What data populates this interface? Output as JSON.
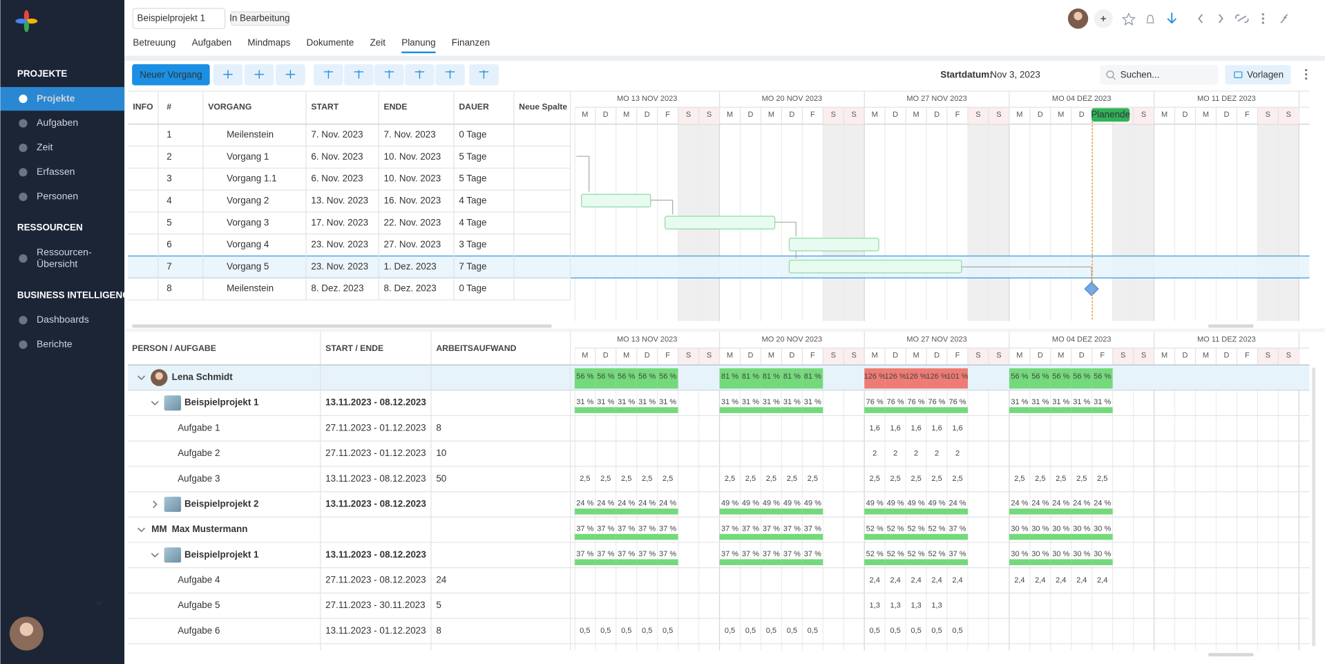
{
  "sidebar": {
    "sections": [
      {
        "title": "PROJEKTE",
        "items": [
          [
            "Projekte"
          ],
          [
            "Aufgaben"
          ],
          [
            "Zeit"
          ],
          [
            "Erfassen"
          ],
          [
            "Personen"
          ]
        ]
      },
      {
        "title": "RESSOURCEN",
        "items": [
          [
            "Ressourcen-",
            "Übersicht"
          ]
        ]
      },
      {
        "title": "BUSINESS INTELLIGENCE",
        "items": [
          [
            "Dashboards"
          ],
          [
            "Berichte"
          ]
        ]
      }
    ],
    "active_item": "Projekte"
  },
  "header": {
    "title": "Beispielprojekt 1",
    "status": "In Bearbeitung",
    "tabs": [
      "Betreuung",
      "Aufgaben",
      "Mindmaps",
      "Dokumente",
      "Zeit",
      "Planung",
      "Finanzen"
    ],
    "active_tab": "Planung"
  },
  "toolbar": {
    "new_button": "Neuer Vorgang",
    "start_label": "Startdatum:",
    "start_date": "Nov 3, 2023",
    "search_placeholder": "Suchen...",
    "templates": "Vorlagen"
  },
  "timeline": {
    "weeks": [
      "MO 13 NOV 2023",
      "MO 20 NOV 2023",
      "MO 27 NOV 2023",
      "MO 04 DEZ 2023",
      "MO 11 DEZ 2023"
    ],
    "days": [
      "M",
      "D",
      "M",
      "D",
      "F",
      "S",
      "S"
    ],
    "plan_end": "Planende"
  },
  "gantt": {
    "columns": [
      "INFO",
      "#",
      "VORGANG",
      "START",
      "ENDE",
      "DAUER",
      "Neue Spalte"
    ],
    "rows": [
      [
        1,
        "Meilenstein",
        "7. Nov. 2023",
        "7. Nov. 2023",
        "0 Tage"
      ],
      [
        2,
        "Vorgang 1",
        "6. Nov. 2023",
        "10. Nov. 2023",
        "5 Tage"
      ],
      [
        3,
        "Vorgang 1.1",
        "6. Nov. 2023",
        "10. Nov. 2023",
        "5 Tage"
      ],
      [
        4,
        "Vorgang 2",
        "13. Nov. 2023",
        "16. Nov. 2023",
        "4 Tage"
      ],
      [
        5,
        "Vorgang 3",
        "17. Nov. 2023",
        "22. Nov. 2023",
        "4 Tage"
      ],
      [
        6,
        "Vorgang 4",
        "23. Nov. 2023",
        "27. Nov. 2023",
        "3 Tage"
      ],
      [
        7,
        "Vorgang 5",
        "23. Nov. 2023",
        "1. Dez. 2023",
        "7 Tage"
      ],
      [
        8,
        "Meilenstein",
        "8. Dez. 2023",
        "8. Dez. 2023",
        "0 Tage"
      ]
    ]
  },
  "resources": {
    "columns": [
      "PERSON / AUFGABE",
      "START / ENDE",
      "ARBEITSAUFWAND"
    ],
    "rows": [
      {
        "name": "Lena Schmidt",
        "weeks": [
          [
            "56 %",
            "56 %",
            "56 %",
            "56 %",
            "56 %"
          ],
          [
            "81 %",
            "81 %",
            "81 %",
            "81 %",
            "81 %"
          ],
          [
            "126 %",
            "126 %",
            "126 %",
            "126 %",
            "101 %"
          ],
          [
            "56 %",
            "56 %",
            "56 %",
            "56 %",
            "56 %"
          ]
        ]
      },
      {
        "name": "Beispielprojekt 1",
        "period": "13.11.2023 - 08.12.2023",
        "weeks": [
          [
            "31 %",
            "31 %",
            "31 %",
            "31 %",
            "31 %"
          ],
          [
            "31 %",
            "31 %",
            "31 %",
            "31 %",
            "31 %"
          ],
          [
            "76 %",
            "76 %",
            "76 %",
            "76 %",
            "76 %"
          ],
          [
            "31 %",
            "31 %",
            "31 %",
            "31 %",
            "31 %"
          ]
        ]
      },
      {
        "name": "Aufgabe 1",
        "period": "27.11.2023 - 01.12.2023",
        "effort": 8,
        "weeks": [
          null,
          null,
          [
            "1,6",
            "1,6",
            "1,6",
            "1,6",
            "1,6"
          ],
          null
        ]
      },
      {
        "name": "Aufgabe 2",
        "period": "27.11.2023 - 01.12.2023",
        "effort": 10,
        "weeks": [
          null,
          null,
          [
            "2",
            "2",
            "2",
            "2",
            "2"
          ],
          null
        ]
      },
      {
        "name": "Aufgabe 3",
        "period": "13.11.2023 - 08.12.2023",
        "effort": 50,
        "weeks": [
          [
            "2,5",
            "2,5",
            "2,5",
            "2,5",
            "2,5"
          ],
          [
            "2,5",
            "2,5",
            "2,5",
            "2,5",
            "2,5"
          ],
          [
            "2,5",
            "2,5",
            "2,5",
            "2,5",
            "2,5"
          ],
          [
            "2,5",
            "2,5",
            "2,5",
            "2,5",
            "2,5"
          ]
        ]
      },
      {
        "name": "Beispielprojekt 2",
        "period": "13.11.2023 - 08.12.2023",
        "weeks": [
          [
            "24 %",
            "24 %",
            "24 %",
            "24 %",
            "24 %"
          ],
          [
            "49 %",
            "49 %",
            "49 %",
            "49 %",
            "49 %"
          ],
          [
            "49 %",
            "49 %",
            "49 %",
            "49 %",
            "24 %"
          ],
          [
            "24 %",
            "24 %",
            "24 %",
            "24 %",
            "24 %"
          ]
        ]
      },
      {
        "name": "Max Mustermann",
        "initials": "MM",
        "weeks": [
          [
            "37 %",
            "37 %",
            "37 %",
            "37 %",
            "37 %"
          ],
          [
            "37 %",
            "37 %",
            "37 %",
            "37 %",
            "37 %"
          ],
          [
            "52 %",
            "52 %",
            "52 %",
            "52 %",
            "37 %"
          ],
          [
            "30 %",
            "30 %",
            "30 %",
            "30 %",
            "30 %"
          ]
        ]
      },
      {
        "name": "Beispielprojekt 1",
        "period": "13.11.2023 - 08.12.2023",
        "weeks": [
          [
            "37 %",
            "37 %",
            "37 %",
            "37 %",
            "37 %"
          ],
          [
            "37 %",
            "37 %",
            "37 %",
            "37 %",
            "37 %"
          ],
          [
            "52 %",
            "52 %",
            "52 %",
            "52 %",
            "37 %"
          ],
          [
            "30 %",
            "30 %",
            "30 %",
            "30 %",
            "30 %"
          ]
        ]
      },
      {
        "name": "Aufgabe 4",
        "period": "27.11.2023 - 08.12.2023",
        "effort": 24,
        "weeks": [
          null,
          null,
          [
            "2,4",
            "2,4",
            "2,4",
            "2,4",
            "2,4"
          ],
          [
            "2,4",
            "2,4",
            "2,4",
            "2,4",
            "2,4"
          ]
        ]
      },
      {
        "name": "Aufgabe 5",
        "period": "27.11.2023 - 30.11.2023",
        "effort": 5,
        "weeks": [
          null,
          null,
          [
            "1,3",
            "1,3",
            "1,3",
            "1,3"
          ],
          null
        ]
      },
      {
        "name": "Aufgabe 6",
        "period": "13.11.2023 - 01.12.2023",
        "effort": 8,
        "weeks": [
          [
            "0,5",
            "0,5",
            "0,5",
            "0,5",
            "0,5"
          ],
          [
            "0,5",
            "0,5",
            "0,5",
            "0,5",
            "0,5"
          ],
          [
            "0,5",
            "0,5",
            "0,5",
            "0,5",
            "0,5"
          ],
          null
        ]
      }
    ]
  }
}
